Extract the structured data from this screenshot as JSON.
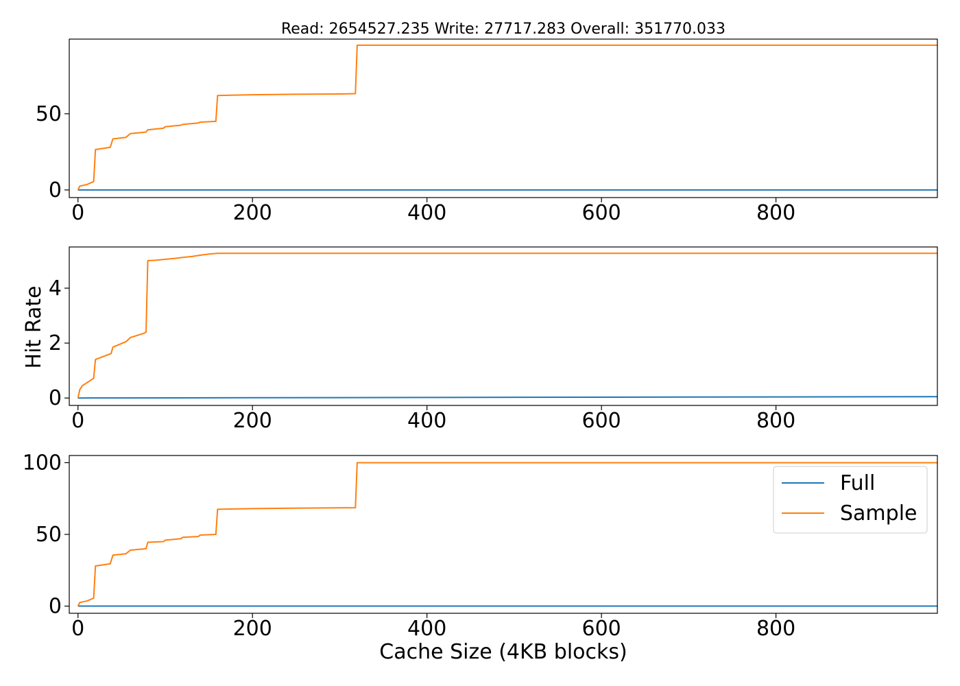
{
  "figure": {
    "title": "Read: 2654527.235 Write: 27717.283 Overall: 351770.033",
    "ylabel": "Hit Rate",
    "xlabel": "Cache Size (4KB blocks)"
  },
  "legend": {
    "placement": "upper right of bottom panel",
    "entries": [
      {
        "label": "Full",
        "color": "#1f77b4"
      },
      {
        "label": "Sample",
        "color": "#ff7f0e"
      }
    ]
  },
  "colors": {
    "full": "#1f77b4",
    "sample": "#ff7f0e",
    "axis": "#000000",
    "background": "#ffffff"
  },
  "chart_data": [
    {
      "type": "line",
      "panel": "top",
      "xlim": [
        -10,
        985
      ],
      "ylim": [
        -5,
        99
      ],
      "xticks": [
        0,
        200,
        400,
        600,
        800
      ],
      "xtick_labels": [
        "0",
        "200",
        "400",
        "600",
        "800"
      ],
      "yticks": [
        0,
        50
      ],
      "ytick_labels": [
        "0",
        "50"
      ],
      "grid": false,
      "series": [
        {
          "name": "Full",
          "color": "#1f77b4",
          "x": [
            0,
            985
          ],
          "y": [
            0,
            0
          ]
        },
        {
          "name": "Sample",
          "color": "#ff7f0e",
          "x": [
            0,
            2,
            10,
            18,
            20,
            37,
            40,
            55,
            60,
            78,
            80,
            98,
            100,
            118,
            120,
            138,
            140,
            158,
            160,
            175,
            200,
            250,
            300,
            318,
            320,
            985
          ],
          "y": [
            0,
            2.5,
            3.5,
            5.5,
            26.5,
            28,
            33.5,
            34.5,
            37,
            38,
            39.5,
            40.5,
            41.5,
            42.5,
            43,
            44,
            44.5,
            45,
            62,
            62.2,
            62.5,
            62.8,
            63,
            63.2,
            95,
            95
          ]
        }
      ]
    },
    {
      "type": "line",
      "panel": "middle",
      "xlim": [
        -10,
        985
      ],
      "ylim": [
        -0.27,
        5.5
      ],
      "xticks": [
        0,
        200,
        400,
        600,
        800
      ],
      "xtick_labels": [
        "0",
        "200",
        "400",
        "600",
        "800"
      ],
      "yticks": [
        0,
        2,
        4
      ],
      "ytick_labels": [
        "0",
        "2",
        "4"
      ],
      "grid": false,
      "series": [
        {
          "name": "Full",
          "color": "#1f77b4",
          "x": [
            0,
            200,
            400,
            600,
            800,
            985
          ],
          "y": [
            0,
            0.01,
            0.02,
            0.03,
            0.04,
            0.05
          ]
        },
        {
          "name": "Sample",
          "color": "#ff7f0e",
          "x": [
            0,
            2,
            5,
            10,
            18,
            20,
            38,
            40,
            55,
            60,
            75,
            78,
            80,
            90,
            100,
            110,
            120,
            130,
            140,
            150,
            160,
            985
          ],
          "y": [
            0,
            0.3,
            0.45,
            0.55,
            0.72,
            1.4,
            1.62,
            1.85,
            2.05,
            2.2,
            2.35,
            2.4,
            5.0,
            5.02,
            5.05,
            5.08,
            5.12,
            5.15,
            5.2,
            5.24,
            5.27,
            5.27
          ]
        }
      ]
    },
    {
      "type": "line",
      "panel": "bottom",
      "xlim": [
        -10,
        985
      ],
      "ylim": [
        -5,
        105
      ],
      "xticks": [
        0,
        200,
        400,
        600,
        800
      ],
      "xtick_labels": [
        "0",
        "200",
        "400",
        "600",
        "800"
      ],
      "yticks": [
        0,
        50,
        100
      ],
      "ytick_labels": [
        "0",
        "50",
        "100"
      ],
      "grid": false,
      "series": [
        {
          "name": "Full",
          "color": "#1f77b4",
          "x": [
            0,
            985
          ],
          "y": [
            0,
            0
          ]
        },
        {
          "name": "Sample",
          "color": "#ff7f0e",
          "x": [
            0,
            2,
            10,
            18,
            20,
            37,
            40,
            55,
            60,
            78,
            80,
            98,
            100,
            118,
            120,
            138,
            140,
            158,
            160,
            175,
            200,
            250,
            300,
            318,
            320,
            985
          ],
          "y": [
            0,
            2.5,
            3.5,
            5.5,
            28,
            29.5,
            35.5,
            36.5,
            39,
            40,
            44.5,
            45,
            46,
            47,
            48,
            48.5,
            49.5,
            50,
            67.5,
            67.7,
            68,
            68.3,
            68.5,
            68.6,
            100,
            100
          ]
        }
      ]
    }
  ]
}
